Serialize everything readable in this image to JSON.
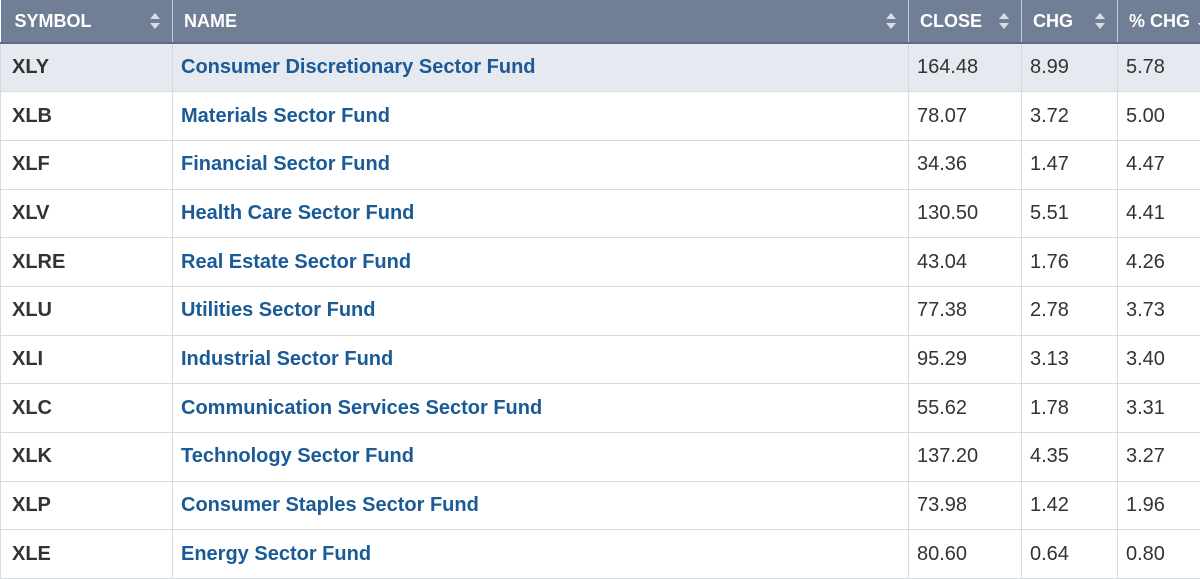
{
  "table": {
    "headers": {
      "symbol": "SYMBOL",
      "name": "NAME",
      "close": "CLOSE",
      "chg": "CHG",
      "pct_chg": "% CHG"
    },
    "rows": [
      {
        "symbol": "XLY",
        "name": "Consumer Discretionary Sector Fund",
        "close": "164.48",
        "chg": "8.99",
        "pct_chg": "5.78"
      },
      {
        "symbol": "XLB",
        "name": "Materials Sector Fund",
        "close": "78.07",
        "chg": "3.72",
        "pct_chg": "5.00"
      },
      {
        "symbol": "XLF",
        "name": "Financial Sector Fund",
        "close": "34.36",
        "chg": "1.47",
        "pct_chg": "4.47"
      },
      {
        "symbol": "XLV",
        "name": "Health Care Sector Fund",
        "close": "130.50",
        "chg": "5.51",
        "pct_chg": "4.41"
      },
      {
        "symbol": "XLRE",
        "name": "Real Estate Sector Fund",
        "close": "43.04",
        "chg": "1.76",
        "pct_chg": "4.26"
      },
      {
        "symbol": "XLU",
        "name": "Utilities Sector Fund",
        "close": "77.38",
        "chg": "2.78",
        "pct_chg": "3.73"
      },
      {
        "symbol": "XLI",
        "name": "Industrial Sector Fund",
        "close": "95.29",
        "chg": "3.13",
        "pct_chg": "3.40"
      },
      {
        "symbol": "XLC",
        "name": "Communication Services Sector Fund",
        "close": "55.62",
        "chg": "1.78",
        "pct_chg": "3.31"
      },
      {
        "symbol": "XLK",
        "name": "Technology Sector Fund",
        "close": "137.20",
        "chg": "4.35",
        "pct_chg": "3.27"
      },
      {
        "symbol": "XLP",
        "name": "Consumer Staples Sector Fund",
        "close": "73.98",
        "chg": "1.42",
        "pct_chg": "1.96"
      },
      {
        "symbol": "XLE",
        "name": "Energy Sector Fund",
        "close": "80.60",
        "chg": "0.64",
        "pct_chg": "0.80"
      }
    ]
  },
  "colors": {
    "header_bg": "#717f96",
    "link": "#1a5a96",
    "row_highlight": "#e6e9ef"
  },
  "icons": {
    "sort": "sort-icon",
    "sort_desc": "sort-desc-icon"
  }
}
